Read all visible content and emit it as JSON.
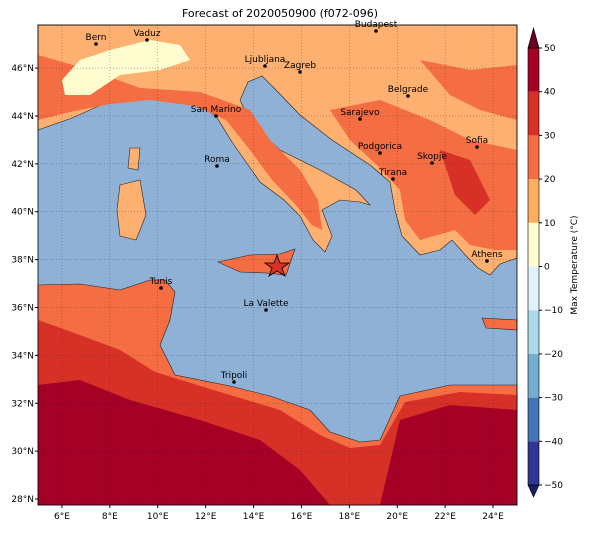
{
  "title": "Forecast of 2020050900 (f072-096)",
  "map": {
    "xlim": [
      5,
      25
    ],
    "ylim": [
      27.75,
      47.8
    ],
    "grid": true,
    "xticks": [
      {
        "value": 6,
        "label": "6°E"
      },
      {
        "value": 8,
        "label": "8°E"
      },
      {
        "value": 10,
        "label": "10°E"
      },
      {
        "value": 12,
        "label": "12°E"
      },
      {
        "value": 14,
        "label": "14°E"
      },
      {
        "value": 16,
        "label": "16°E"
      },
      {
        "value": 18,
        "label": "18°E"
      },
      {
        "value": 20,
        "label": "20°E"
      },
      {
        "value": 22,
        "label": "22°E"
      },
      {
        "value": 24,
        "label": "24°E"
      }
    ],
    "yticks": [
      {
        "value": 28,
        "label": "28°N"
      },
      {
        "value": 30,
        "label": "30°N"
      },
      {
        "value": 32,
        "label": "32°N"
      },
      {
        "value": 34,
        "label": "34°N"
      },
      {
        "value": 36,
        "label": "36°N"
      },
      {
        "value": 38,
        "label": "38°N"
      },
      {
        "value": 40,
        "label": "40°N"
      },
      {
        "value": 42,
        "label": "42°N"
      },
      {
        "value": 44,
        "label": "44°N"
      },
      {
        "value": 46,
        "label": "46°N"
      }
    ],
    "cities": [
      "Bern",
      "Vaduz",
      "Budapest",
      "Ljubljana",
      "Zagreb",
      "Belgrade",
      "Sarajevo",
      "San Marino",
      "Roma",
      "Podgorica",
      "Skopje",
      "Sofia",
      "Tirana",
      "Athens",
      "Tunis",
      "La Valette",
      "Tripoli"
    ]
  },
  "colorbar": {
    "label": "Max Temperature (°C)",
    "lim": [
      -50,
      50
    ],
    "ticks": [
      {
        "value": -50,
        "label": "−50"
      },
      {
        "value": -40,
        "label": "−40"
      },
      {
        "value": -30,
        "label": "−30"
      },
      {
        "value": -20,
        "label": "−20"
      },
      {
        "value": -10,
        "label": "−10"
      },
      0,
      10,
      20,
      30,
      40,
      50
    ],
    "colors": [
      "#313695",
      "#4575b4",
      "#74add1",
      "#abd9e9",
      "#e0f3f8",
      "#fffdd0",
      "#fdae61",
      "#f46d43",
      "#d73027",
      "#a50026"
    ],
    "extend_colors": [
      "#1b1f6b",
      "#6b0020"
    ]
  }
}
